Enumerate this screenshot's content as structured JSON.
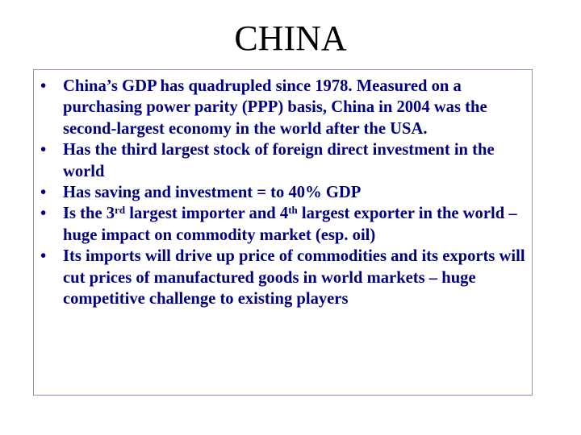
{
  "slide": {
    "title": "CHINA",
    "bullet_symbol": "•",
    "text_color": "#000080",
    "bullets": [
      {
        "text": "China’s GDP has quadrupled since 1978. Measured on a purchasing power parity (PPP) basis, China in 2004 was the second-largest economy in the world after the USA."
      },
      {
        "text": "Has the third largest stock of foreign direct investment in the world"
      },
      {
        "text": "Has saving and investment = to 40% GDP"
      },
      {
        "part1": "Is the 3",
        "sup1": "rd",
        "part2": " largest importer and 4",
        "sup2": "th",
        "part3": " largest exporter in the world – huge impact on commodity market (esp. oil)"
      },
      {
        "text": "Its imports will drive up price of commodities and its exports will cut prices of manufactured goods in world markets – huge competitive challenge to existing players"
      }
    ]
  }
}
